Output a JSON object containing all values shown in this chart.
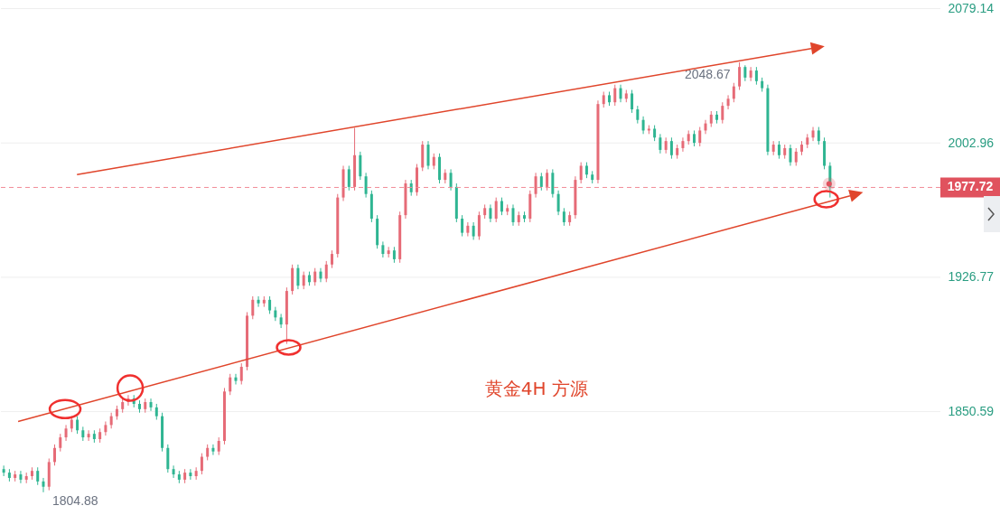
{
  "chart_data": {
    "type": "candlestick",
    "categories": [
      null,
      null,
      null,
      null,
      null,
      null,
      null,
      null,
      null,
      null,
      null,
      null,
      null,
      null,
      null,
      null,
      null,
      null,
      null,
      null,
      null,
      null,
      null,
      null,
      null,
      null,
      null,
      null,
      null,
      null,
      null,
      null,
      null,
      null,
      null,
      null,
      null,
      null,
      null,
      null,
      null,
      null,
      null,
      null,
      null,
      null,
      null,
      null,
      null,
      null,
      null,
      null,
      null,
      null,
      null,
      null,
      null,
      null,
      null,
      null,
      null,
      null,
      null,
      null,
      null,
      null,
      null,
      null,
      null,
      null,
      null,
      null,
      null,
      null,
      null,
      null,
      null,
      null,
      null,
      null,
      null,
      null,
      null,
      null,
      null,
      null,
      null,
      null,
      null,
      null,
      null,
      null,
      null,
      null,
      null,
      null,
      null,
      null,
      null,
      null,
      null,
      null,
      null,
      null,
      null,
      null,
      null,
      null,
      null,
      null,
      null,
      null,
      null,
      null,
      null,
      null,
      null,
      null,
      null,
      null,
      null,
      null,
      null,
      null,
      null,
      null,
      null,
      null,
      null,
      null,
      null,
      null,
      null,
      null,
      null,
      null,
      null,
      null,
      null,
      null,
      null,
      null,
      null,
      null,
      null,
      null,
      null,
      null,
      null,
      null,
      null,
      null,
      null,
      null,
      null,
      null,
      null,
      null,
      null,
      null,
      null,
      null,
      null,
      null,
      null,
      null
    ],
    "ohlc": [
      [
        1818,
        1820,
        1814,
        1816
      ],
      [
        1816,
        1818,
        1811,
        1813
      ],
      [
        1813,
        1817,
        1811,
        1815
      ],
      [
        1815,
        1817,
        1810,
        1812
      ],
      [
        1812,
        1816,
        1810,
        1814
      ],
      [
        1814,
        1819,
        1812,
        1817
      ],
      [
        1817,
        1819,
        1809,
        1811
      ],
      [
        1811,
        1813,
        1804.88,
        1808
      ],
      [
        1808,
        1824,
        1806,
        1822
      ],
      [
        1822,
        1832,
        1820,
        1830
      ],
      [
        1830,
        1838,
        1828,
        1836
      ],
      [
        1836,
        1843,
        1834,
        1841
      ],
      [
        1841,
        1848,
        1839,
        1846
      ],
      [
        1846,
        1848,
        1838,
        1840
      ],
      [
        1840,
        1842,
        1834,
        1836
      ],
      [
        1836,
        1840,
        1834,
        1838
      ],
      [
        1838,
        1840,
        1833,
        1835
      ],
      [
        1835,
        1841,
        1833,
        1839
      ],
      [
        1839,
        1845,
        1837,
        1843
      ],
      [
        1843,
        1850,
        1841,
        1848
      ],
      [
        1848,
        1854,
        1846,
        1852
      ],
      [
        1852,
        1858,
        1850,
        1856
      ],
      [
        1856,
        1860,
        1854,
        1858
      ],
      [
        1858,
        1860,
        1853,
        1855
      ],
      [
        1855,
        1857,
        1850,
        1852
      ],
      [
        1852,
        1858,
        1850,
        1856
      ],
      [
        1856,
        1858,
        1851,
        1853
      ],
      [
        1853,
        1855,
        1846,
        1848
      ],
      [
        1848,
        1850,
        1828,
        1830
      ],
      [
        1830,
        1832,
        1816,
        1818
      ],
      [
        1818,
        1820,
        1813,
        1815
      ],
      [
        1815,
        1817,
        1810,
        1812
      ],
      [
        1812,
        1818,
        1810,
        1816
      ],
      [
        1816,
        1818,
        1812,
        1814
      ],
      [
        1814,
        1819,
        1812,
        1817
      ],
      [
        1817,
        1827,
        1815,
        1825
      ],
      [
        1825,
        1832,
        1823,
        1830
      ],
      [
        1830,
        1832,
        1826,
        1828
      ],
      [
        1828,
        1836,
        1826,
        1834
      ],
      [
        1834,
        1864,
        1832,
        1862
      ],
      [
        1862,
        1872,
        1860,
        1870
      ],
      [
        1870,
        1872,
        1866,
        1868
      ],
      [
        1868,
        1878,
        1866,
        1876
      ],
      [
        1876,
        1907,
        1874,
        1905
      ],
      [
        1905,
        1916,
        1903,
        1914
      ],
      [
        1914,
        1916,
        1910,
        1912
      ],
      [
        1912,
        1916,
        1910,
        1914
      ],
      [
        1914,
        1916,
        1906,
        1908
      ],
      [
        1908,
        1910,
        1902,
        1904
      ],
      [
        1904,
        1906,
        1898,
        1900
      ],
      [
        1900,
        1921,
        1889,
        1919
      ],
      [
        1919,
        1934,
        1917,
        1932
      ],
      [
        1932,
        1934,
        1920,
        1922
      ],
      [
        1922,
        1930,
        1920,
        1928
      ],
      [
        1928,
        1930,
        1922,
        1924
      ],
      [
        1924,
        1932,
        1922,
        1930
      ],
      [
        1930,
        1932,
        1924,
        1926
      ],
      [
        1926,
        1936,
        1924,
        1934
      ],
      [
        1934,
        1942,
        1932,
        1940
      ],
      [
        1940,
        1974,
        1938,
        1972
      ],
      [
        1972,
        1990,
        1970,
        1988
      ],
      [
        1988,
        1990,
        1976,
        1978
      ],
      [
        1978,
        2011.5,
        1976,
        1996
      ],
      [
        1996,
        1998,
        1982,
        1984
      ],
      [
        1984,
        1986,
        1972,
        1974
      ],
      [
        1974,
        1976,
        1958,
        1960
      ],
      [
        1960,
        1962,
        1943,
        1945
      ],
      [
        1945,
        1947,
        1938,
        1940
      ],
      [
        1940,
        1944,
        1938,
        1942
      ],
      [
        1942,
        1944,
        1935,
        1937
      ],
      [
        1937,
        1964,
        1935,
        1962
      ],
      [
        1962,
        1982,
        1960,
        1980
      ],
      [
        1980,
        1982,
        1973,
        1975
      ],
      [
        1975,
        1991,
        1973,
        1989
      ],
      [
        1989,
        2004,
        1987,
        2002
      ],
      [
        2002,
        2004,
        1988,
        1990
      ],
      [
        1990,
        1997,
        1988,
        1995
      ],
      [
        1995,
        1997,
        1980,
        1982
      ],
      [
        1982,
        1988,
        1980,
        1986
      ],
      [
        1986,
        1988,
        1976,
        1978
      ],
      [
        1978,
        1980,
        1958,
        1960
      ],
      [
        1960,
        1962,
        1950,
        1952
      ],
      [
        1952,
        1958,
        1950,
        1956
      ],
      [
        1956,
        1958,
        1948,
        1950
      ],
      [
        1950,
        1964,
        1948,
        1962
      ],
      [
        1962,
        1968,
        1960,
        1966
      ],
      [
        1966,
        1968,
        1958,
        1960
      ],
      [
        1960,
        1972,
        1958,
        1970
      ],
      [
        1970,
        1972,
        1962,
        1964
      ],
      [
        1964,
        1968,
        1962,
        1966
      ],
      [
        1966,
        1968,
        1956,
        1958
      ],
      [
        1958,
        1964,
        1956,
        1962
      ],
      [
        1962,
        1964,
        1958,
        1960
      ],
      [
        1960,
        1976,
        1958,
        1974
      ],
      [
        1974,
        1986,
        1972,
        1984
      ],
      [
        1984,
        1986,
        1976,
        1978
      ],
      [
        1978,
        1988,
        1976,
        1986
      ],
      [
        1986,
        1988,
        1972,
        1974
      ],
      [
        1974,
        1976,
        1962,
        1964
      ],
      [
        1964,
        1966,
        1956,
        1958
      ],
      [
        1958,
        1964,
        1956,
        1962
      ],
      [
        1962,
        1984,
        1960,
        1982
      ],
      [
        1982,
        1992,
        1980,
        1990
      ],
      [
        1990,
        1992,
        1983,
        1985
      ],
      [
        1985,
        1987,
        1980,
        1982
      ],
      [
        1982,
        2027,
        1980,
        2025
      ],
      [
        2025,
        2032,
        2023,
        2030
      ],
      [
        2030,
        2032,
        2024,
        2026
      ],
      [
        2026,
        2036,
        2024,
        2034
      ],
      [
        2034,
        2036,
        2026,
        2028
      ],
      [
        2028,
        2033,
        2026,
        2031
      ],
      [
        2031,
        2033,
        2020,
        2022
      ],
      [
        2022,
        2024,
        2014,
        2016
      ],
      [
        2016,
        2018,
        2008,
        2010
      ],
      [
        2010,
        2013,
        2008,
        2011
      ],
      [
        2011,
        2013,
        2004,
        2006
      ],
      [
        2006,
        2008,
        1997,
        1999
      ],
      [
        1999,
        2006,
        1997,
        2004
      ],
      [
        2004,
        2006,
        1994,
        1996
      ],
      [
        1996,
        2002,
        1994,
        2000
      ],
      [
        2000,
        2006,
        1998,
        2004
      ],
      [
        2004,
        2010,
        2002,
        2008
      ],
      [
        2008,
        2010,
        2001,
        2003
      ],
      [
        2003,
        2012,
        2001,
        2010
      ],
      [
        2010,
        2016,
        2008,
        2014
      ],
      [
        2014,
        2021,
        2012,
        2019
      ],
      [
        2019,
        2021,
        2014,
        2016
      ],
      [
        2016,
        2026,
        2014,
        2024
      ],
      [
        2024,
        2030,
        2022,
        2028
      ],
      [
        2028,
        2037,
        2026,
        2035
      ],
      [
        2035,
        2048.67,
        2033,
        2046
      ],
      [
        2046,
        2047,
        2038,
        2040
      ],
      [
        2040,
        2046,
        2038,
        2044
      ],
      [
        2044,
        2046,
        2036,
        2038
      ],
      [
        2038,
        2040,
        2032,
        2034
      ],
      [
        2034,
        2036,
        1996,
        1998
      ],
      [
        1998,
        2004,
        1996,
        2002
      ],
      [
        2002,
        2004,
        1994,
        1996
      ],
      [
        1996,
        2002,
        1994,
        2000
      ],
      [
        2000,
        2002,
        1990,
        1992
      ],
      [
        1992,
        2000,
        1990,
        1998
      ],
      [
        1998,
        2004,
        1996,
        2002
      ],
      [
        2002,
        2008,
        2000,
        2006
      ],
      [
        2006,
        2012,
        2004,
        2010
      ],
      [
        2010,
        2012,
        2002,
        2004
      ],
      [
        2004,
        2006,
        1988,
        1990
      ],
      [
        1990,
        1992,
        1972,
        1977.72
      ],
      null,
      null,
      null,
      null,
      null,
      null,
      null,
      null,
      null,
      null,
      null,
      null,
      null,
      null,
      null,
      null,
      null,
      null,
      null
    ],
    "colors": [
      "#2fb592",
      "#2fb592",
      "#e66b77",
      "#2fb592",
      "#e66b77",
      "#e66b77",
      "#2fb592",
      "#2fb592",
      "#e66b77",
      "#e66b77",
      "#e66b77",
      "#e66b77",
      "#e66b77",
      "#2fb592",
      "#2fb592",
      "#e66b77",
      "#2fb592",
      "#e66b77",
      "#e66b77",
      "#e66b77",
      "#e66b77",
      "#e66b77",
      "#e66b77",
      "#2fb592",
      "#2fb592",
      "#e66b77",
      "#2fb592",
      "#2fb592",
      "#2fb592",
      "#2fb592",
      "#2fb592",
      "#2fb592",
      "#e66b77",
      "#2fb592",
      "#e66b77",
      "#e66b77",
      "#e66b77",
      "#2fb592",
      "#e66b77",
      "#e66b77",
      "#e66b77",
      "#2fb592",
      "#e66b77",
      "#e66b77",
      "#e66b77",
      "#2fb592",
      "#e66b77",
      "#2fb592",
      "#2fb592",
      "#2fb592",
      "#e66b77",
      "#e66b77",
      "#2fb592",
      "#e66b77",
      "#2fb592",
      "#e66b77",
      "#2fb592",
      "#e66b77",
      "#e66b77",
      "#e66b77",
      "#e66b77",
      "#2fb592",
      "#e66b77",
      "#2fb592",
      "#2fb592",
      "#2fb592",
      "#2fb592",
      "#2fb592",
      "#e66b77",
      "#2fb592",
      "#e66b77",
      "#e66b77",
      "#2fb592",
      "#e66b77",
      "#e66b77",
      "#2fb592",
      "#e66b77",
      "#2fb592",
      "#e66b77",
      "#2fb592",
      "#2fb592",
      "#2fb592",
      "#e66b77",
      "#2fb592",
      "#e66b77",
      "#e66b77",
      "#2fb592",
      "#e66b77",
      "#2fb592",
      "#e66b77",
      "#2fb592",
      "#e66b77",
      "#2fb592",
      "#e66b77",
      "#e66b77",
      "#2fb592",
      "#e66b77",
      "#2fb592",
      "#2fb592",
      "#2fb592",
      "#e66b77",
      "#e66b77",
      "#e66b77",
      "#2fb592",
      "#2fb592",
      "#e66b77",
      "#e66b77",
      "#2fb592",
      "#e66b77",
      "#2fb592",
      "#e66b77",
      "#2fb592",
      "#2fb592",
      "#2fb592",
      "#e66b77",
      "#2fb592",
      "#2fb592",
      "#e66b77",
      "#2fb592",
      "#e66b77",
      "#e66b77",
      "#e66b77",
      "#2fb592",
      "#e66b77",
      "#e66b77",
      "#e66b77",
      "#2fb592",
      "#e66b77",
      "#e66b77",
      "#e66b77",
      "#e66b77",
      "#2fb592",
      "#e66b77",
      "#2fb592",
      "#2fb592",
      "#2fb592",
      "#e66b77",
      "#2fb592",
      "#e66b77",
      "#2fb592",
      "#e66b77",
      "#e66b77",
      "#e66b77",
      "#e66b77",
      "#2fb592",
      "#2fb592",
      "#2fb592",
      null,
      null,
      null,
      null,
      null,
      null,
      null,
      null,
      null,
      null,
      null,
      null,
      null,
      null,
      null,
      null,
      null,
      null,
      null
    ],
    "ylim": [
      1793,
      2084
    ],
    "yticks": [
      1850.59,
      1926.77,
      2002.96,
      2079.14
    ],
    "grid": "y",
    "tick_labels": "y",
    "ref_lines": [
      {
        "axis": "y",
        "value": 1977.72,
        "label": "1977.72",
        "color": "#f28b96",
        "line_style": "dashed"
      }
    ],
    "annotations": [
      "2048.67",
      "1804.88",
      "黄金4H  方源"
    ]
  }
}
